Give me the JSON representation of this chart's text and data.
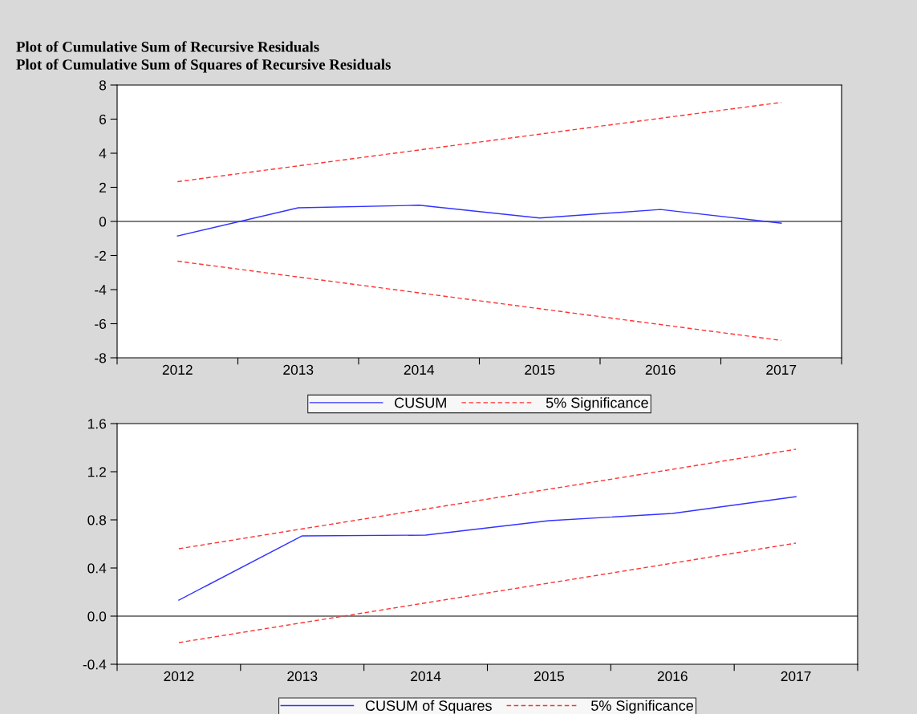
{
  "chart_data": [
    {
      "type": "line",
      "title": "Plot of Cumulative Sum of Recursive Residuals",
      "subtitle": "Plot of Cumulative Sum of Squares of Recursive Residuals",
      "categories": [
        "2012",
        "2013",
        "2014",
        "2015",
        "2016",
        "2017"
      ],
      "ylim": [
        -8,
        8
      ],
      "yticks": [
        -8,
        -6,
        -4,
        -2,
        0,
        2,
        4,
        6,
        8
      ],
      "legend": "bottom",
      "grid": false,
      "series": [
        {
          "name": "CUSUM",
          "color": "#3333ff",
          "line_style": "solid",
          "values": [
            -0.85,
            0.8,
            0.95,
            0.2,
            0.7,
            -0.1
          ]
        },
        {
          "name": "5% Significance",
          "color": "#ff3333",
          "line_style": "dashed",
          "values": [
            2.33,
            3.26,
            4.19,
            5.12,
            6.05,
            6.98
          ]
        },
        {
          "color": "#ff3333",
          "line_style": "dashed",
          "values": [
            -2.33,
            -3.26,
            -4.19,
            -5.12,
            -6.05,
            -6.98
          ]
        }
      ],
      "ref_lines": [
        {
          "axis": "y",
          "value": 0,
          "color": "#000000"
        }
      ]
    },
    {
      "type": "line",
      "categories": [
        "2012",
        "2013",
        "2014",
        "2015",
        "2016",
        "2017"
      ],
      "ylim": [
        -0.4,
        1.6
      ],
      "yticks": [
        {
          "value": -0.4,
          "label": "-0.4"
        },
        {
          "value": 0,
          "label": "0.0"
        },
        {
          "value": 0.4,
          "label": "0.4"
        },
        {
          "value": 0.8,
          "label": "0.8"
        },
        {
          "value": 1.2,
          "label": "1.2"
        },
        {
          "value": 1.6,
          "label": "1.6"
        }
      ],
      "legend": "bottom",
      "grid": false,
      "series": [
        {
          "name": "CUSUM of Squares",
          "color": "#3333ff",
          "line_style": "solid",
          "values": [
            0.133,
            0.667,
            0.673,
            0.793,
            0.853,
            0.993
          ]
        },
        {
          "name": "5% Significance",
          "color": "#ff3333",
          "line_style": "dashed",
          "values": [
            0.56,
            0.725,
            0.89,
            1.055,
            1.22,
            1.387
          ]
        },
        {
          "color": "#ff3333",
          "line_style": "dashed",
          "values": [
            -0.22,
            -0.055,
            0.11,
            0.275,
            0.44,
            0.607
          ]
        }
      ],
      "ref_lines": [
        {
          "axis": "y",
          "value": 0,
          "color": "#000000"
        }
      ]
    }
  ]
}
